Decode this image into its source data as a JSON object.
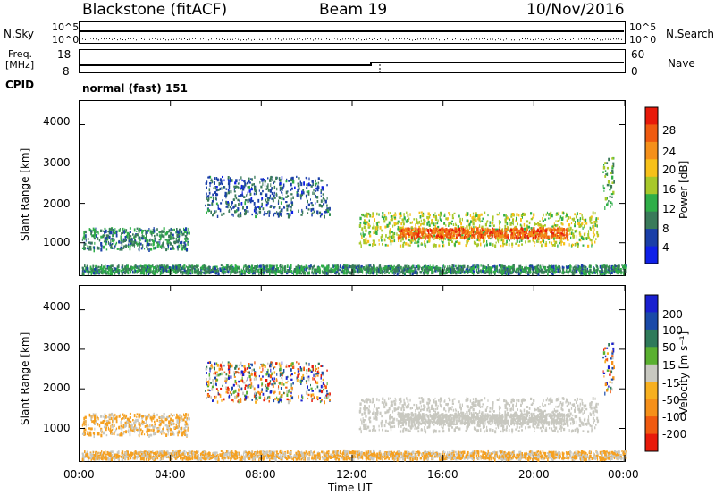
{
  "header": {
    "title": "Blackstone (fitACF)",
    "beam": "Beam 19",
    "date": "10/Nov/2016"
  },
  "left_labels": {
    "nsky": "N.Sky",
    "freq_line1": "Freq.",
    "freq_line2": "[MHz]",
    "cpid": "CPID",
    "nsky_ticks": [
      "10^5",
      "10^0"
    ],
    "freq_ticks": [
      "18",
      "8"
    ]
  },
  "right_labels": {
    "nsearch": "N.Search",
    "nave": "Nave",
    "nsearch_ticks": [
      "10^5",
      "10^0"
    ],
    "nave_ticks": [
      "60",
      "0"
    ]
  },
  "cpid_text": "normal (fast) 151",
  "colors": {
    "power_bar": [
      "#0f20e8",
      "#1a3fa8",
      "#3a7a5a",
      "#2fae48",
      "#a8c82a",
      "#f7c11a",
      "#f5901a",
      "#ef5a10",
      "#e81a0a"
    ],
    "velocity_bar": [
      "#e81a0a",
      "#f05a10",
      "#f5901a",
      "#f7b020",
      "#c8c8c0",
      "#5ab030",
      "#2f7a5a",
      "#1a4aa8",
      "#1a20d0"
    ],
    "velocity_main": "#c8c8c0",
    "velocity_orange": "#f5a020"
  },
  "chart_data": [
    {
      "type": "heatmap",
      "name_key": "power",
      "ylabel": "Slant Range [km]",
      "yticks": [
        "4000",
        "3000",
        "2000",
        "1000"
      ],
      "ytick_values": [
        4000,
        3000,
        2000,
        1000
      ],
      "ylim": [
        200,
        4600
      ],
      "xlim": [
        0,
        24
      ],
      "colorbar_label": "Power [dB]",
      "colorbar_ticks": [
        "28",
        "24",
        "20",
        "16",
        "12",
        "8",
        "4"
      ],
      "colorbar_range": [
        0,
        32
      ],
      "echo_bands": [
        {
          "t0": 0.1,
          "t1": 4.8,
          "r0": 850,
          "r1": 1400,
          "level": 9
        },
        {
          "t0": 5.5,
          "t1": 11.0,
          "r0": 1700,
          "r1": 2700,
          "level": 7
        },
        {
          "t0": 12.3,
          "t1": 22.8,
          "r0": 950,
          "r1": 1800,
          "level": 16
        },
        {
          "t0": 14.0,
          "t1": 21.5,
          "r0": 1150,
          "r1": 1400,
          "level": 26
        },
        {
          "t0": 23.0,
          "t1": 23.5,
          "r0": 1900,
          "r1": 3200,
          "level": 12
        },
        {
          "t0": 0.1,
          "t1": 24.0,
          "r0": 250,
          "r1": 450,
          "level": 10
        }
      ]
    },
    {
      "type": "heatmap",
      "name_key": "velocity",
      "ylabel": "Slant Range [km]",
      "yticks": [
        "4000",
        "3000",
        "2000",
        "1000"
      ],
      "ytick_values": [
        4000,
        3000,
        2000,
        1000
      ],
      "ylim": [
        200,
        4600
      ],
      "xlim": [
        0,
        24
      ],
      "xticks": [
        "00:00",
        "04:00",
        "08:00",
        "12:00",
        "16:00",
        "20:00",
        "00:00"
      ],
      "xtick_values": [
        0,
        4,
        8,
        12,
        16,
        20,
        24
      ],
      "xlabel": "Time UT",
      "colorbar_label": "Velocity [m s⁻¹]",
      "colorbar_ticks": [
        "200",
        "100",
        "50",
        "15",
        "-15",
        "-50",
        "-100",
        "-200"
      ]
    }
  ]
}
